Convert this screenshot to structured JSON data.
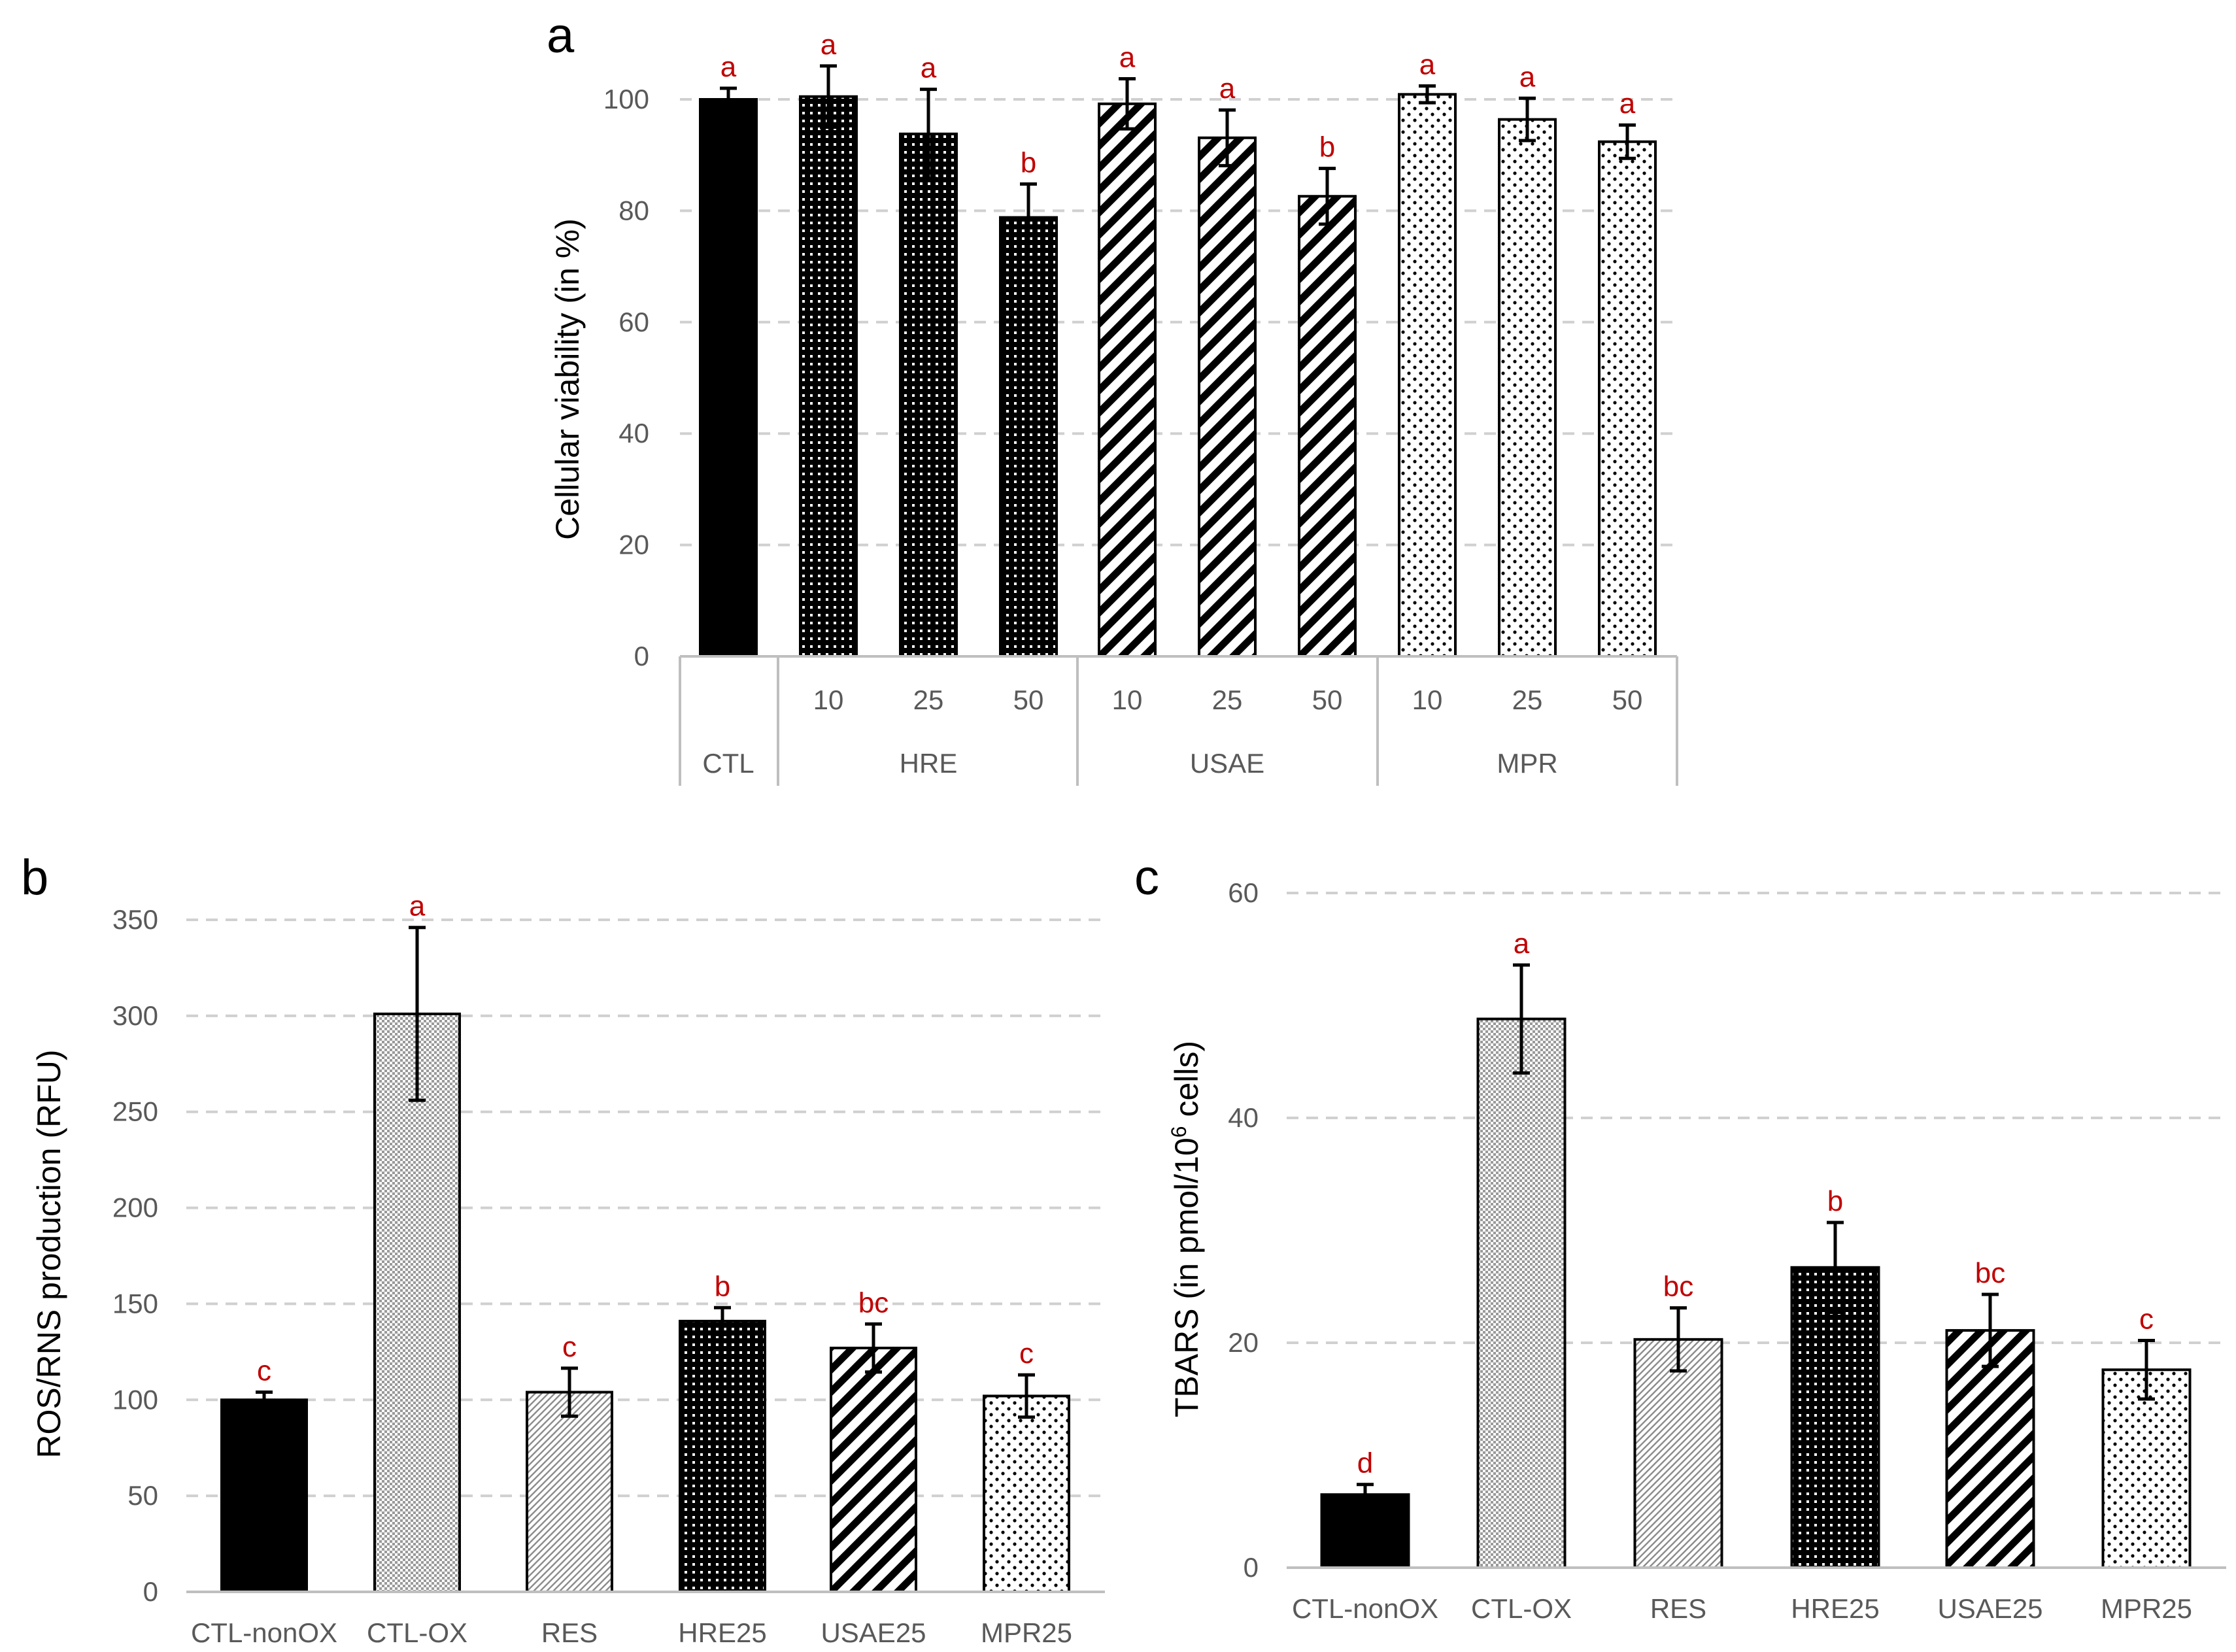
{
  "chart_data": [
    {
      "panel": "a",
      "type": "bar",
      "ylabel": "Cellular viability (in %)",
      "ylim": [
        0,
        100
      ],
      "yticks": [
        0,
        20,
        40,
        60,
        80,
        100
      ],
      "grid": true,
      "groups": [
        {
          "name": "CTL",
          "categories": [
            ""
          ]
        },
        {
          "name": "HRE",
          "categories": [
            "10",
            "25",
            "50"
          ]
        },
        {
          "name": "USAE",
          "categories": [
            "10",
            "25",
            "50"
          ]
        },
        {
          "name": "MPR",
          "categories": [
            "10",
            "25",
            "50"
          ]
        }
      ],
      "bars": [
        {
          "group": "CTL",
          "label": "",
          "value": 100,
          "error": 2,
          "sig": "a",
          "pattern": "solid"
        },
        {
          "group": "HRE",
          "label": "10",
          "value": 100.5,
          "error": 5.5,
          "sig": "a",
          "pattern": "dense-dots"
        },
        {
          "group": "HRE",
          "label": "25",
          "value": 93.8,
          "error": 8,
          "sig": "a",
          "pattern": "dense-dots"
        },
        {
          "group": "HRE",
          "label": "50",
          "value": 78.8,
          "error": 6,
          "sig": "b",
          "pattern": "dense-dots"
        },
        {
          "group": "USAE",
          "label": "10",
          "value": 99.2,
          "error": 4.5,
          "sig": "a",
          "pattern": "diagonal"
        },
        {
          "group": "USAE",
          "label": "25",
          "value": 93.1,
          "error": 5,
          "sig": "a",
          "pattern": "diagonal"
        },
        {
          "group": "USAE",
          "label": "50",
          "value": 82.6,
          "error": 5,
          "sig": "b",
          "pattern": "diagonal"
        },
        {
          "group": "MPR",
          "label": "10",
          "value": 100.9,
          "error": 1.5,
          "sig": "a",
          "pattern": "light-dots"
        },
        {
          "group": "MPR",
          "label": "25",
          "value": 96.4,
          "error": 3.8,
          "sig": "a",
          "pattern": "light-dots"
        },
        {
          "group": "MPR",
          "label": "50",
          "value": 92.4,
          "error": 3,
          "sig": "a",
          "pattern": "light-dots"
        }
      ]
    },
    {
      "panel": "b",
      "type": "bar",
      "ylabel": "ROS/RNS production (RFU)",
      "ylim": [
        0,
        350
      ],
      "yticks": [
        0,
        50,
        100,
        150,
        200,
        250,
        300,
        350
      ],
      "grid": true,
      "categories": [
        "CTL-nonOX",
        "CTL-OX",
        "RES",
        "HRE25",
        "USAE25",
        "MPR25"
      ],
      "values": [
        100,
        301,
        104,
        141,
        127,
        102
      ],
      "errors": [
        4,
        45,
        12.5,
        7,
        12.5,
        11
      ],
      "sig": [
        "c",
        "a",
        "c",
        "b",
        "bc",
        "c"
      ],
      "patterns": [
        "solid",
        "checker",
        "fine-diagonal",
        "dense-dots",
        "diagonal",
        "light-dots"
      ]
    },
    {
      "panel": "c",
      "type": "bar",
      "ylabel_main": "TBARS (in pmol/10",
      "ylabel_sup": "6",
      "ylabel_end": " cells)",
      "ylim": [
        0,
        60
      ],
      "yticks": [
        0,
        20,
        40,
        60
      ],
      "grid": true,
      "categories": [
        "CTL-nonOX",
        "CTL-OX",
        "RES",
        "HRE25",
        "USAE25",
        "MPR25"
      ],
      "values": [
        6.5,
        48.8,
        20.3,
        26.7,
        21.1,
        17.6
      ],
      "errors": [
        0.9,
        4.8,
        2.8,
        4.0,
        3.2,
        2.6
      ],
      "sig": [
        "d",
        "a",
        "bc",
        "b",
        "bc",
        "c"
      ],
      "patterns": [
        "solid",
        "checker",
        "fine-diagonal",
        "dense-dots",
        "diagonal",
        "light-dots"
      ]
    }
  ]
}
